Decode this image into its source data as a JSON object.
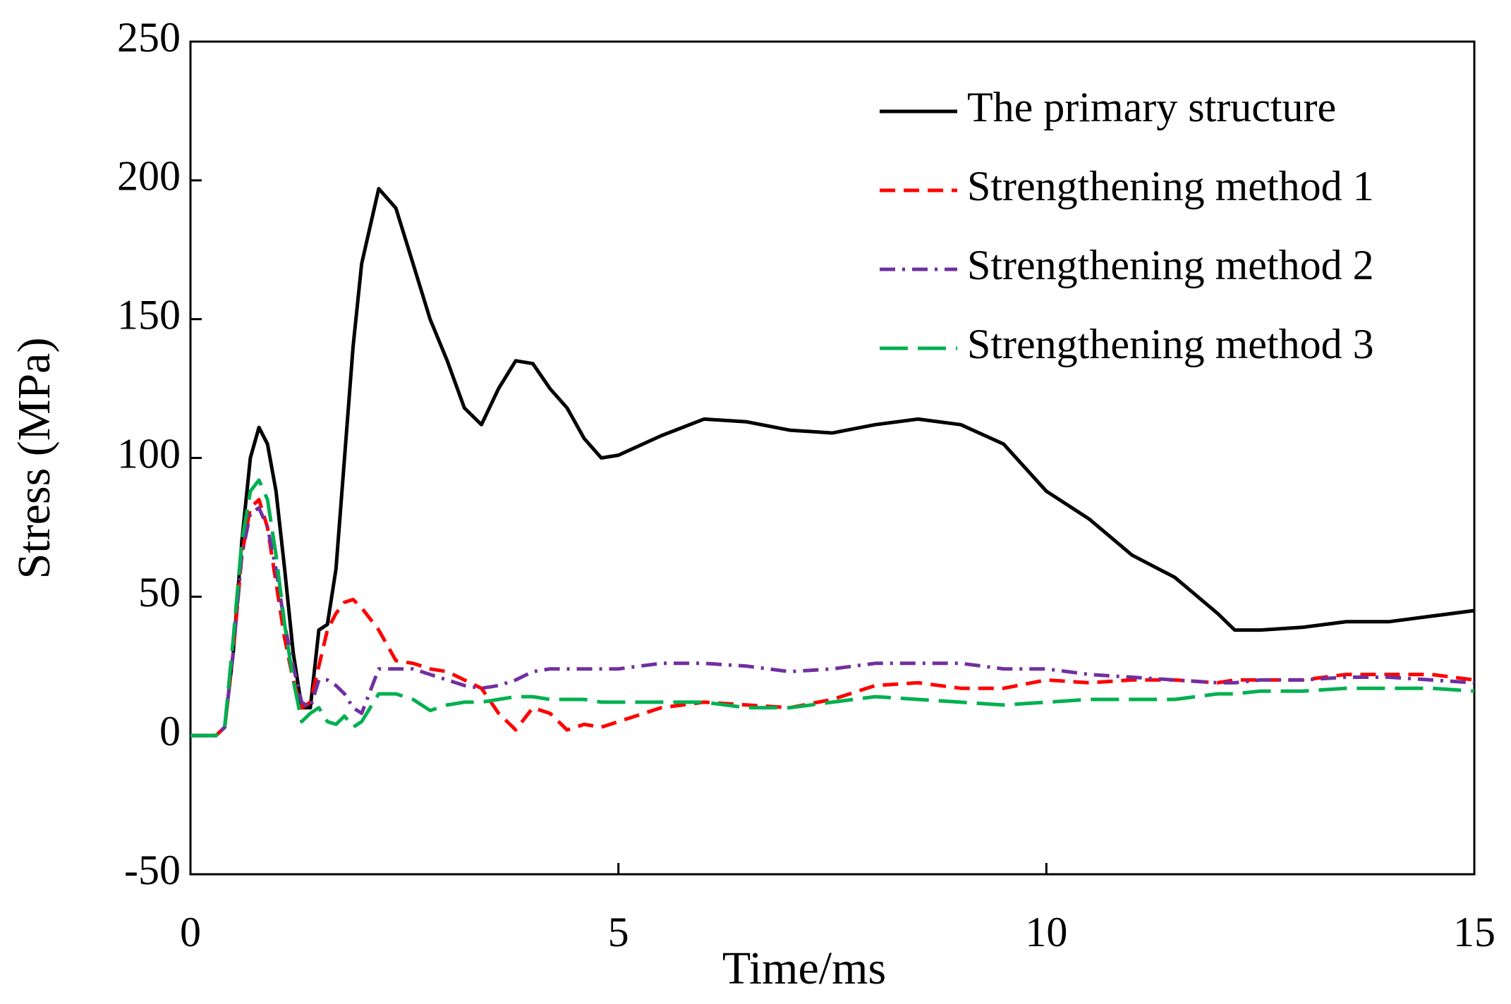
{
  "chart_data": {
    "type": "line",
    "xlabel": "Time/ms",
    "ylabel": "Stress (MPa)",
    "x": [
      0,
      0.3,
      0.4,
      0.5,
      0.6,
      0.7,
      0.8,
      0.9,
      1.0,
      1.1,
      1.2,
      1.3,
      1.4,
      1.5,
      1.6,
      1.7,
      1.8,
      1.9,
      2.0,
      2.2,
      2.4,
      2.6,
      2.8,
      3.0,
      3.2,
      3.4,
      3.6,
      3.8,
      4.0,
      4.2,
      4.4,
      4.6,
      4.8,
      5.0,
      5.5,
      6.0,
      6.5,
      7.0,
      7.5,
      8.0,
      8.5,
      9.0,
      9.5,
      10,
      10.5,
      11,
      11.5,
      12,
      12.2,
      12.5,
      13,
      13.5,
      14,
      14.5,
      15
    ],
    "series": [
      {
        "name": "The primary structure",
        "color": "#000000",
        "dash": "none",
        "values": [
          0,
          0,
          3,
          30,
          70,
          100,
          111,
          105,
          88,
          60,
          30,
          10,
          10,
          38,
          40,
          60,
          100,
          140,
          170,
          197,
          190,
          170,
          150,
          135,
          118,
          112,
          125,
          135,
          134,
          125,
          118,
          107,
          100,
          101,
          108,
          114,
          113,
          110,
          109,
          112,
          114,
          112,
          105,
          88,
          78,
          65,
          57,
          44,
          38,
          38,
          39,
          41,
          41,
          43,
          45
        ]
      },
      {
        "name": "Strengthening method 1",
        "color": "#ff0000",
        "dash": "22 12",
        "values": [
          0,
          0,
          3,
          30,
          65,
          82,
          85,
          75,
          55,
          35,
          20,
          10,
          12,
          25,
          38,
          44,
          48,
          49,
          46,
          38,
          27,
          26,
          24,
          23,
          20,
          17,
          8,
          2,
          10,
          8,
          2,
          4,
          3,
          5,
          10,
          12,
          11,
          10,
          13,
          18,
          19,
          17,
          17,
          20,
          19,
          20,
          20,
          19,
          20,
          20,
          20,
          22,
          22,
          22,
          20
        ]
      },
      {
        "name": "Strengthening method 2",
        "color": "#7030a0",
        "dash": "22 10 4 10",
        "values": [
          0,
          0,
          3,
          30,
          65,
          80,
          82,
          75,
          60,
          40,
          25,
          12,
          10,
          20,
          20,
          18,
          15,
          10,
          8,
          24,
          24,
          24,
          22,
          20,
          18,
          17,
          18,
          20,
          23,
          24,
          24,
          24,
          24,
          24,
          26,
          26,
          25,
          23,
          24,
          26,
          26,
          26,
          24,
          24,
          22,
          21,
          20,
          19,
          19,
          20,
          20,
          21,
          21,
          20,
          19
        ]
      },
      {
        "name": "Strengthening method 3",
        "color": "#00b050",
        "dash": "40 14",
        "values": [
          0,
          0,
          3,
          35,
          70,
          88,
          92,
          85,
          65,
          40,
          20,
          5,
          8,
          10,
          5,
          4,
          7,
          3,
          5,
          15,
          15,
          13,
          9,
          11,
          12,
          12,
          13,
          14,
          14,
          13,
          13,
          13,
          12,
          12,
          12,
          12,
          10,
          10,
          12,
          14,
          13,
          12,
          11,
          12,
          13,
          13,
          13,
          15,
          15,
          16,
          16,
          17,
          17,
          17,
          16
        ]
      }
    ],
    "xlim": [
      0,
      15
    ],
    "xticks": [
      0,
      5,
      10,
      15
    ],
    "ylim": [
      -50,
      250
    ],
    "yticks": [
      -50,
      0,
      50,
      100,
      150,
      200,
      250
    ],
    "grid": false,
    "legend": "upper right"
  }
}
